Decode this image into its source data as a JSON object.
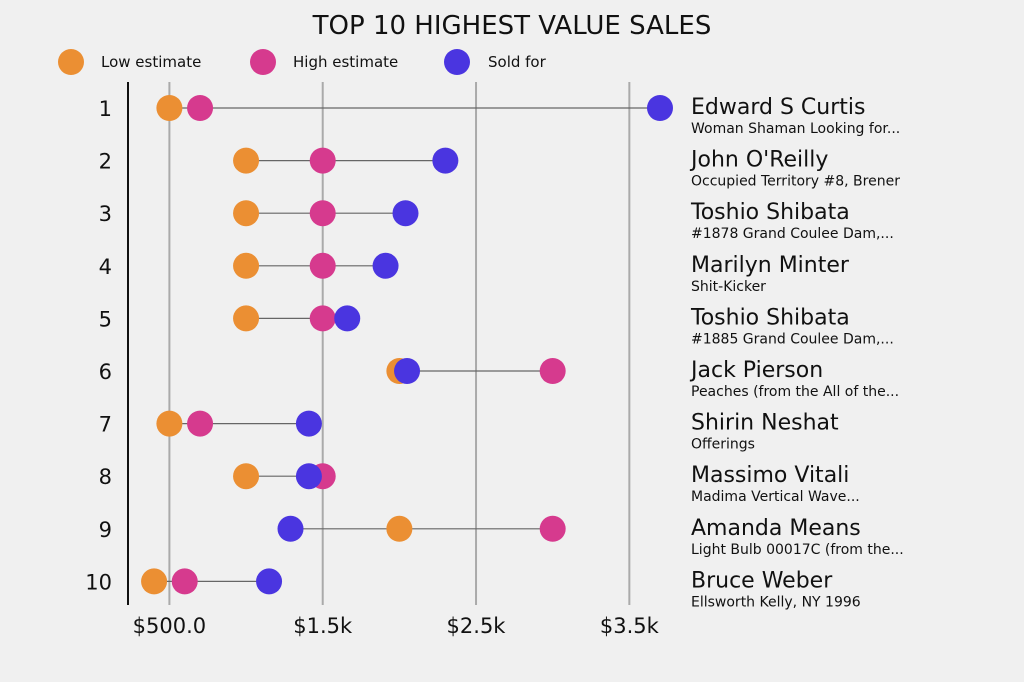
{
  "chart_data": {
    "type": "dumbbell",
    "title": "TOP 10 HIGHEST VALUE SALES",
    "legend": [
      {
        "key": "low",
        "label": "Low estimate",
        "color": "#eb8f33"
      },
      {
        "key": "high",
        "label": "High estimate",
        "color": "#d63a8e"
      },
      {
        "key": "sold",
        "label": "Sold for",
        "color": "#4a35e0"
      }
    ],
    "x_ticks": [
      {
        "value": 500,
        "label": "$500.0"
      },
      {
        "value": 1500,
        "label": "$1.5k"
      },
      {
        "value": 2500,
        "label": "$2.5k"
      },
      {
        "value": 3500,
        "label": "$3.5k"
      }
    ],
    "xlim": [
      230,
      3700
    ],
    "rows": [
      {
        "rank": "1",
        "artist": "Edward S Curtis",
        "work": "Woman Shaman Looking for...",
        "low": 500,
        "high": 700,
        "sold": 3700
      },
      {
        "rank": "2",
        "artist": "John O'Reilly",
        "work": "Occupied Territory #8, Brener",
        "low": 1000,
        "high": 1500,
        "sold": 2300
      },
      {
        "rank": "3",
        "artist": "Toshio Shibata",
        "work": "#1878 Grand Coulee Dam,...",
        "low": 1000,
        "high": 1500,
        "sold": 2040
      },
      {
        "rank": "4",
        "artist": "Marilyn Minter",
        "work": "Shit-Kicker",
        "low": 1000,
        "high": 1500,
        "sold": 1910
      },
      {
        "rank": "5",
        "artist": "Toshio Shibata",
        "work": "#1885 Grand Coulee Dam,...",
        "low": 1000,
        "high": 1500,
        "sold": 1660
      },
      {
        "rank": "6",
        "artist": "Jack Pierson",
        "work": "Peaches (from the All of the...",
        "low": 2000,
        "high": 3000,
        "sold": 2050
      },
      {
        "rank": "7",
        "artist": "Shirin Neshat",
        "work": "Offerings",
        "low": 500,
        "high": 700,
        "sold": 1410
      },
      {
        "rank": "8",
        "artist": "Massimo Vitali",
        "work": "Madima Vertical Wave...",
        "low": 1000,
        "high": 1500,
        "sold": 1410
      },
      {
        "rank": "9",
        "artist": "Amanda Means",
        "work": "Light Bulb 00017C (from the...",
        "low": 2000,
        "high": 3000,
        "sold": 1290
      },
      {
        "rank": "10",
        "artist": "Bruce Weber",
        "work": "Ellsworth Kelly, NY 1996",
        "low": 400,
        "high": 600,
        "sold": 1150
      }
    ]
  }
}
